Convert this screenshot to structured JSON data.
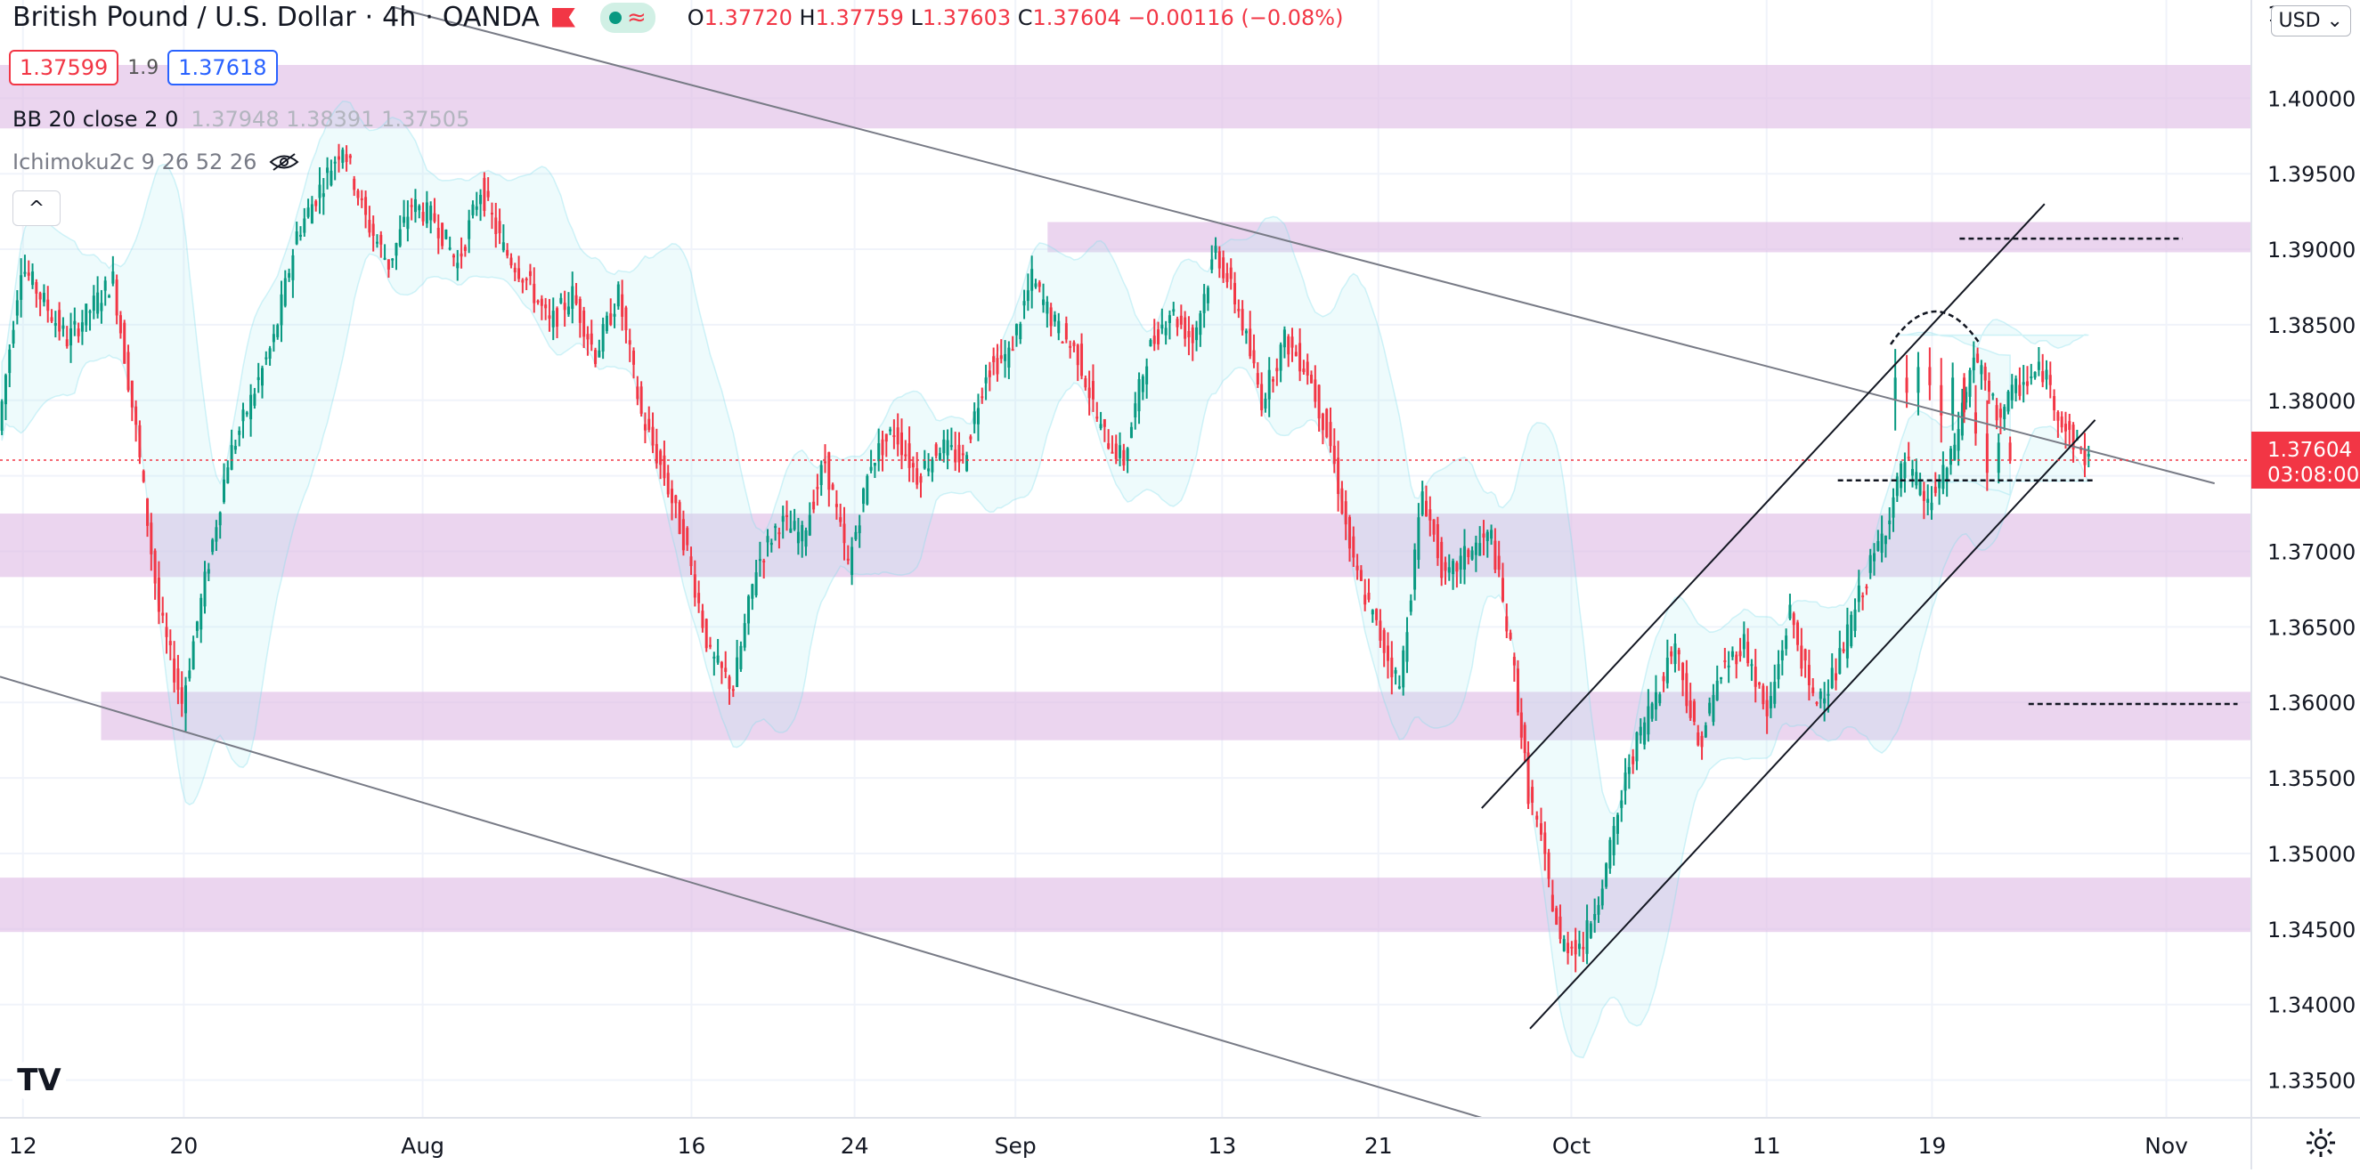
{
  "header": {
    "symbol": "British Pound / U.S. Dollar",
    "interval": "4h",
    "exchange": "OANDA",
    "ohlc": {
      "o_label": "O",
      "o": "1.37720",
      "h_label": "H",
      "h": "1.37759",
      "l_label": "L",
      "l": "1.37603",
      "c_label": "C",
      "c": "1.37604",
      "change": "−0.00116 (−0.08%)"
    }
  },
  "trade": {
    "sell": "1.37599",
    "spread": "1.9",
    "buy": "1.37618"
  },
  "indicators": {
    "bb": {
      "label": "BB 20 close 2 0",
      "values": "1.37948  1.38391  1.37505"
    },
    "ichimoku": {
      "label": "Ichimoku2c 9 26 52 26"
    }
  },
  "currency": "USD",
  "collapse_glyph": "^",
  "logo": "TV",
  "colors": {
    "up": "#089981",
    "down": "#f23645",
    "zone": "#e1bee7",
    "line": "#131722"
  },
  "chart_data": {
    "type": "candlestick",
    "y_axis": {
      "min": 1.3325,
      "max": 1.4065,
      "ticks": [
        "1.40000",
        "1.39500",
        "1.39000",
        "1.38500",
        "1.38000",
        "1.37500",
        "1.37000",
        "1.36500",
        "1.36000",
        "1.35500",
        "1.35000",
        "1.34500",
        "1.34000",
        "1.33500"
      ],
      "top_partial": "1"
    },
    "x_axis": {
      "ticks": [
        "12",
        "20",
        "Aug",
        "16",
        "24",
        "Sep",
        "13",
        "21",
        "Oct",
        "11",
        "19",
        "Nov"
      ]
    },
    "last_price": {
      "value": 1.37604,
      "label": "1.37604",
      "countdown": "03:08:00"
    },
    "price_path": [
      [
        0,
        1.378
      ],
      [
        1,
        1.389
      ],
      [
        3,
        1.384
      ],
      [
        5,
        1.388
      ],
      [
        6,
        1.378
      ],
      [
        7,
        1.366
      ],
      [
        8,
        1.36
      ],
      [
        9,
        1.368
      ],
      [
        10,
        1.376
      ],
      [
        11,
        1.38
      ],
      [
        12,
        1.384
      ],
      [
        13,
        1.391
      ],
      [
        14,
        1.394
      ],
      [
        15,
        1.397
      ],
      [
        16,
        1.392
      ],
      [
        17,
        1.389
      ],
      [
        18,
        1.393
      ],
      [
        19,
        1.392
      ],
      [
        20,
        1.389
      ],
      [
        21,
        1.394
      ],
      [
        22,
        1.39
      ],
      [
        23,
        1.388
      ],
      [
        24,
        1.385
      ],
      [
        25,
        1.387
      ],
      [
        26,
        1.383
      ],
      [
        27,
        1.387
      ],
      [
        28,
        1.379
      ],
      [
        29,
        1.375
      ],
      [
        30,
        1.37
      ],
      [
        31,
        1.363
      ],
      [
        32,
        1.361
      ],
      [
        33,
        1.369
      ],
      [
        34,
        1.372
      ],
      [
        35,
        1.371
      ],
      [
        36,
        1.376
      ],
      [
        37,
        1.369
      ],
      [
        38,
        1.376
      ],
      [
        39,
        1.378
      ],
      [
        40,
        1.375
      ],
      [
        41,
        1.377
      ],
      [
        42,
        1.376
      ],
      [
        43,
        1.382
      ],
      [
        44,
        1.383
      ],
      [
        45,
        1.388
      ],
      [
        46,
        1.385
      ],
      [
        47,
        1.383
      ],
      [
        48,
        1.378
      ],
      [
        49,
        1.376
      ],
      [
        50,
        1.383
      ],
      [
        51,
        1.386
      ],
      [
        52,
        1.384
      ],
      [
        53,
        1.39
      ],
      [
        54,
        1.386
      ],
      [
        55,
        1.38
      ],
      [
        56,
        1.384
      ],
      [
        57,
        1.382
      ],
      [
        58,
        1.377
      ],
      [
        59,
        1.369
      ],
      [
        60,
        1.365
      ],
      [
        61,
        1.361
      ],
      [
        62,
        1.374
      ],
      [
        63,
        1.368
      ],
      [
        64,
        1.37
      ],
      [
        65,
        1.371
      ],
      [
        66,
        1.362
      ],
      [
        66.6,
        1.354
      ],
      [
        67,
        1.352
      ],
      [
        68,
        1.344
      ],
      [
        69,
        1.344
      ],
      [
        70,
        1.349
      ],
      [
        71,
        1.356
      ],
      [
        72,
        1.36
      ],
      [
        73,
        1.364
      ],
      [
        74,
        1.357
      ],
      [
        75,
        1.362
      ],
      [
        76,
        1.364
      ],
      [
        77,
        1.359
      ],
      [
        78,
        1.366
      ],
      [
        79,
        1.36
      ],
      [
        80,
        1.362
      ],
      [
        81,
        1.367
      ],
      [
        82,
        1.371
      ],
      [
        83,
        1.376
      ],
      [
        84,
        1.373
      ],
      [
        85,
        1.376
      ],
      [
        86,
        1.383
      ],
      [
        87,
        1.379
      ],
      [
        88,
        1.381
      ],
      [
        89,
        1.382
      ],
      [
        90,
        1.378
      ],
      [
        91,
        1.376
      ]
    ],
    "x_tick_pos": [
      1,
      8,
      18.4,
      30.1,
      37.2,
      44.2,
      53.2,
      60,
      68.4,
      76.9,
      84.1,
      94.3
    ],
    "x_range": [
      0,
      98
    ],
    "zones": [
      {
        "x0": 0,
        "x1": 98,
        "y0": 1.398,
        "y1": 1.4022
      },
      {
        "x0": 45.6,
        "x1": 98,
        "y0": 1.3898,
        "y1": 1.3918
      },
      {
        "x0": 0,
        "x1": 98,
        "y0": 1.3683,
        "y1": 1.3725
      },
      {
        "x0": 4.4,
        "x1": 98,
        "y0": 1.3575,
        "y1": 1.3607
      },
      {
        "x0": 0,
        "x1": 98,
        "y0": 1.3448,
        "y1": 1.3484
      }
    ],
    "trendlines": [
      {
        "x0": 17.2,
        "y0": 1.406,
        "x1": 96.4,
        "y1": 1.3745,
        "color": "#787b86"
      },
      {
        "x0": 0,
        "y0": 1.3617,
        "x1": 64.5,
        "y1": 1.3325,
        "color": "#787b86"
      },
      {
        "x0": 64.5,
        "y0": 1.353,
        "x1": 89,
        "y1": 1.393,
        "color": "#131722"
      },
      {
        "x0": 66.6,
        "y0": 1.3384,
        "x1": 91.2,
        "y1": 1.3787,
        "color": "#131722"
      }
    ],
    "dashed_lines": [
      {
        "x0": 85.3,
        "x1": 95,
        "y": 1.3907
      },
      {
        "x0": 80,
        "x1": 91.2,
        "y": 1.3747
      },
      {
        "x0": 88.3,
        "x1": 97.4,
        "y": 1.3599
      }
    ],
    "arc": {
      "x0": 82.3,
      "x1": 86.2,
      "top": 1.3857,
      "base": 1.3837
    },
    "end_candles": [
      [
        82.5,
        1.38,
        1.3834,
        1.378,
        1.3815
      ],
      [
        83,
        1.3815,
        1.383,
        1.3795,
        1.3805
      ],
      [
        83.5,
        1.3805,
        1.3832,
        1.379,
        1.3822
      ],
      [
        84,
        1.3822,
        1.3835,
        1.38,
        1.381
      ],
      [
        84.5,
        1.381,
        1.3828,
        1.3772,
        1.379
      ],
      [
        85,
        1.379,
        1.3825,
        1.378,
        1.3815
      ],
      [
        85.5,
        1.3815,
        1.3818,
        1.3785,
        1.3792
      ],
      [
        86,
        1.3792,
        1.381,
        1.377,
        1.3778
      ],
      [
        86.5,
        1.3778,
        1.38,
        1.374,
        1.3752
      ],
      [
        87,
        1.3752,
        1.3778,
        1.3745,
        1.3772
      ],
      [
        87.5,
        1.3772,
        1.3776,
        1.3758,
        1.376
      ]
    ]
  }
}
